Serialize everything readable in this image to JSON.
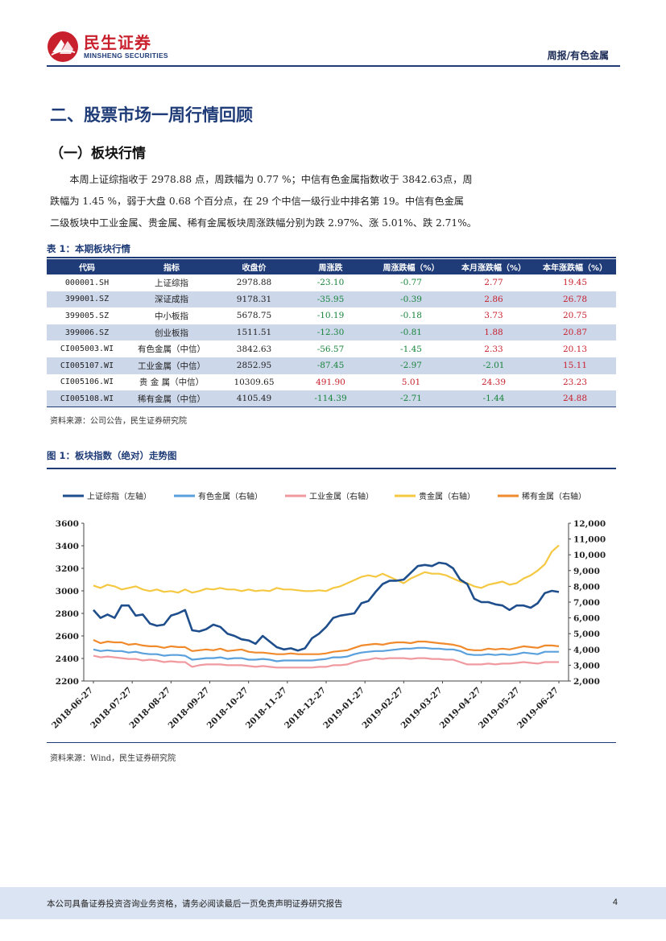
{
  "header": {
    "logo_cn": "民生证券",
    "logo_en": "MINSHENG SECURITIES",
    "doc_type": "周报/有色金属",
    "brand_color": "#c8202c",
    "accent_color": "#1f3c78"
  },
  "section_title": "二、股票市场一周行情回顾",
  "subsection_title": "（一）板块行情",
  "paragraph": [
    "　　本周上证综指收于 2978.88 点，周跌幅为 0.77 %；中信有色金属指数收于 3842.63点，周",
    "跌幅为 1.45 %，弱于大盘 0.68 个百分点，在 29 个中信一级行业中排名第 19。中信有色金属",
    "二级板块中工业金属、贵金属、稀有金属板块周涨跌幅分别为跌 2.97%、涨 5.01%、跌 2.71%。"
  ],
  "table": {
    "caption": "表 1：本期板块行情",
    "headers": [
      "代码",
      "指标",
      "收盘价",
      "周涨跌",
      "周涨跌幅（%）",
      "本月涨跌幅（%）",
      "本年涨跌幅（%）"
    ],
    "rows": [
      [
        "000001.SH",
        "上证综指",
        "2978.88",
        "-23.10",
        "-0.77",
        "2.77",
        "19.45"
      ],
      [
        "399001.SZ",
        "深证成指",
        "9178.31",
        "-35.95",
        "-0.39",
        "2.86",
        "26.78"
      ],
      [
        "399005.SZ",
        "中小板指",
        "5678.75",
        "-10.19",
        "-0.18",
        "3.73",
        "20.75"
      ],
      [
        "399006.SZ",
        "创业板指",
        "1511.51",
        "-12.30",
        "-0.81",
        "1.88",
        "20.87"
      ],
      [
        "CI005003.WI",
        "有色金属（中信）",
        "3842.63",
        "-56.57",
        "-1.45",
        "2.33",
        "20.13"
      ],
      [
        "CI005107.WI",
        "工业金属（中信）",
        "2852.95",
        "-87.45",
        "-2.97",
        "-2.01",
        "15.11"
      ],
      [
        "CI005106.WI",
        "贵 金 属（中信）",
        "10309.65",
        "491.90",
        "5.01",
        "24.39",
        "23.23"
      ],
      [
        "CI005108.WI",
        "稀有金属（中信）",
        "4105.49",
        "-114.39",
        "-2.71",
        "-1.44",
        "24.88"
      ]
    ],
    "source": "资料来源：公司公告，民生证券研究院"
  },
  "figure": {
    "caption": "图 1：板块指数（绝对）走势图",
    "source": "资料来源：Wind，民生证券研究院"
  },
  "chart_data": {
    "type": "line",
    "x_tick_labels": [
      "2018-06-27",
      "2018-07-27",
      "2018-08-27",
      "2018-09-27",
      "2018-10-27",
      "2018-11-27",
      "2018-12-27",
      "2019-01-27",
      "2019-02-27",
      "2019-03-27",
      "2019-04-27",
      "2019-05-27",
      "2019-06-27"
    ],
    "y_left": {
      "min": 2200,
      "max": 3600,
      "ticks": [
        2200,
        2400,
        2600,
        2800,
        3000,
        3200,
        3400,
        3600
      ]
    },
    "y_right": {
      "min": 2000,
      "max": 12000,
      "ticks": [
        "2,000",
        "3,000",
        "4,000",
        "5,000",
        "6,000",
        "7,000",
        "8,000",
        "9,000",
        "10,000",
        "11,000",
        "12,000"
      ]
    },
    "legend_position": "top",
    "grid": false,
    "series": [
      {
        "name": "上证综指（左轴）",
        "axis": "left",
        "color": "#1f4e8c",
        "values": [
          2830,
          2760,
          2790,
          2760,
          2870,
          2870,
          2780,
          2790,
          2710,
          2690,
          2700,
          2780,
          2800,
          2830,
          2650,
          2640,
          2660,
          2700,
          2680,
          2620,
          2600,
          2570,
          2560,
          2530,
          2600,
          2550,
          2500,
          2480,
          2490,
          2470,
          2490,
          2580,
          2620,
          2680,
          2760,
          2780,
          2790,
          2800,
          2890,
          2910,
          2990,
          3060,
          3090,
          3090,
          3100,
          3160,
          3220,
          3230,
          3220,
          3250,
          3240,
          3200,
          3100,
          3060,
          2930,
          2900,
          2900,
          2880,
          2870,
          2830,
          2870,
          2870,
          2850,
          2890,
          2980,
          3000,
          2990
        ]
      },
      {
        "name": "有色金属（右轴）",
        "axis": "right",
        "color": "#5aa0dc",
        "values": [
          4000,
          3900,
          3950,
          3900,
          3900,
          3800,
          3850,
          3750,
          3700,
          3700,
          3600,
          3650,
          3650,
          3600,
          3350,
          3400,
          3450,
          3450,
          3500,
          3400,
          3450,
          3450,
          3350,
          3350,
          3400,
          3350,
          3250,
          3300,
          3300,
          3300,
          3300,
          3300,
          3350,
          3400,
          3500,
          3500,
          3550,
          3700,
          3800,
          3850,
          3900,
          3900,
          3950,
          4000,
          4050,
          4050,
          4100,
          4100,
          4050,
          4050,
          4000,
          4000,
          3900,
          3700,
          3650,
          3650,
          3700,
          3650,
          3700,
          3650,
          3700,
          3800,
          3750,
          3700,
          3850,
          3850,
          3850
        ]
      },
      {
        "name": "工业金属（右轴）",
        "axis": "right",
        "color": "#f09aa0",
        "values": [
          3600,
          3500,
          3550,
          3500,
          3450,
          3400,
          3400,
          3300,
          3350,
          3300,
          3200,
          3250,
          3200,
          3200,
          2900,
          3000,
          3050,
          3050,
          3050,
          3000,
          3000,
          3000,
          2950,
          2900,
          2950,
          2900,
          2850,
          2850,
          2850,
          2850,
          2850,
          2850,
          2900,
          2900,
          3000,
          3000,
          3050,
          3200,
          3300,
          3350,
          3450,
          3400,
          3450,
          3450,
          3450,
          3400,
          3450,
          3450,
          3400,
          3400,
          3350,
          3350,
          3200,
          3050,
          3050,
          3050,
          3100,
          3050,
          3100,
          3100,
          3150,
          3200,
          3150,
          3100,
          3200,
          3200,
          3200
        ]
      },
      {
        "name": "贵金属（右轴）",
        "axis": "right",
        "color": "#f5c842",
        "values": [
          8050,
          7900,
          8100,
          8000,
          7800,
          7900,
          8000,
          7800,
          7700,
          7800,
          7650,
          7700,
          7600,
          7800,
          7600,
          7700,
          7850,
          7800,
          7900,
          7800,
          7800,
          7700,
          7800,
          7700,
          7750,
          7700,
          7900,
          7800,
          7800,
          7750,
          7700,
          7700,
          7750,
          7700,
          7900,
          8000,
          8200,
          8400,
          8600,
          8700,
          8600,
          8800,
          8600,
          8400,
          8200,
          8500,
          8700,
          8900,
          8800,
          8800,
          8700,
          8500,
          8300,
          8200,
          8000,
          7900,
          8100,
          8200,
          8300,
          8100,
          8200,
          8500,
          8700,
          9000,
          9400,
          10200,
          10600
        ]
      },
      {
        "name": "稀有金属（右轴）",
        "axis": "right",
        "color": "#f08a2c",
        "values": [
          4600,
          4400,
          4500,
          4450,
          4450,
          4300,
          4350,
          4250,
          4200,
          4200,
          4100,
          4200,
          4150,
          4150,
          3900,
          3950,
          4000,
          3950,
          4050,
          3900,
          3950,
          4000,
          3850,
          3800,
          3800,
          3750,
          3700,
          3700,
          3750,
          3700,
          3700,
          3700,
          3700,
          3750,
          3850,
          3900,
          3950,
          4100,
          4250,
          4300,
          4350,
          4300,
          4400,
          4450,
          4450,
          4400,
          4500,
          4500,
          4450,
          4400,
          4350,
          4300,
          4200,
          4000,
          3950,
          3950,
          4050,
          4000,
          4050,
          4000,
          4100,
          4200,
          4150,
          4100,
          4250,
          4250,
          4200
        ]
      }
    ]
  },
  "footer": {
    "disclaimer": "本公司具备证券投资咨询业务资格，请务必阅读最后一页免责声明证券研究报告",
    "page": "4"
  }
}
